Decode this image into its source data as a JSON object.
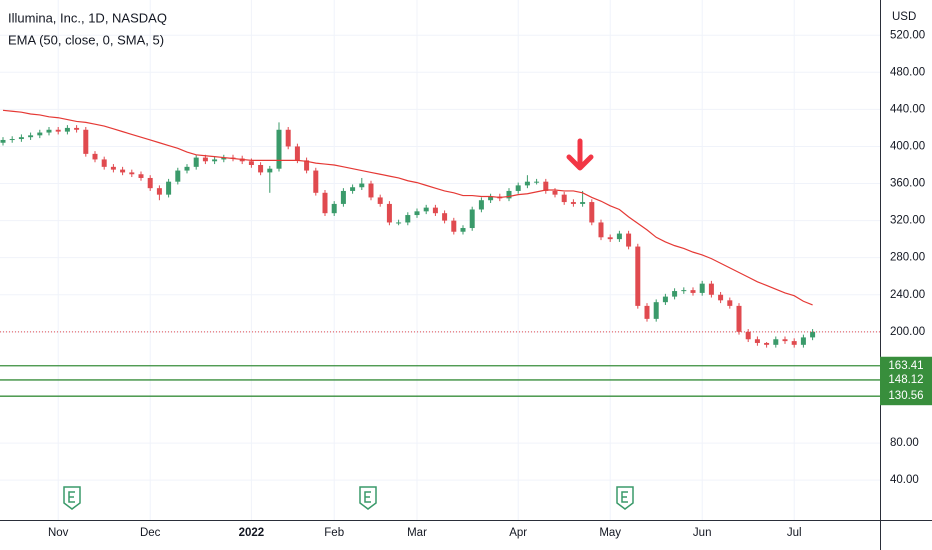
{
  "chart_data": {
    "type": "candlestick",
    "title": "Illumina, Inc., 1D, NASDAQ",
    "currency": "USD",
    "categories": [
      null,
      null,
      null,
      null,
      null,
      null,
      "Nov",
      null,
      null,
      null,
      null,
      null,
      null,
      null,
      null,
      null,
      "Dec",
      null,
      null,
      null,
      null,
      null,
      null,
      null,
      null,
      null,
      null,
      "2022",
      null,
      null,
      null,
      null,
      null,
      null,
      null,
      null,
      "Feb",
      null,
      null,
      null,
      null,
      null,
      null,
      null,
      null,
      "Mar",
      null,
      null,
      null,
      null,
      null,
      null,
      null,
      null,
      null,
      null,
      "Apr",
      null,
      null,
      null,
      null,
      null,
      null,
      null,
      null,
      null,
      "May",
      null,
      null,
      null,
      null,
      null,
      null,
      null,
      null,
      null,
      "Jun",
      null,
      null,
      null,
      null,
      null,
      null,
      null,
      null,
      null,
      "Jul",
      null,
      null
    ],
    "open": [
      404,
      407,
      408,
      410,
      412,
      415,
      418,
      416,
      420,
      418,
      392,
      386,
      378,
      375,
      372,
      370,
      366,
      355,
      348,
      362,
      374,
      378,
      388,
      384,
      386,
      388,
      387,
      384,
      380,
      372,
      376,
      418,
      400,
      385,
      374,
      350,
      328,
      338,
      352,
      356,
      360,
      345,
      338,
      318,
      318,
      326,
      330,
      334,
      328,
      320,
      308,
      312,
      332,
      342,
      346,
      344,
      352,
      358,
      362,
      362,
      352,
      348,
      340,
      338,
      340,
      318,
      302,
      300,
      306,
      292,
      228,
      214,
      232,
      238,
      244,
      245,
      242,
      252,
      240,
      234,
      228,
      200,
      192,
      188,
      186,
      192,
      190,
      186,
      194
    ],
    "high": [
      410,
      411,
      413,
      415,
      418,
      421,
      421,
      423,
      423,
      421,
      395,
      389,
      381,
      378,
      375,
      373,
      369,
      358,
      365,
      377,
      381,
      391,
      391,
      389,
      391,
      391,
      390,
      387,
      383,
      379,
      426,
      421,
      403,
      388,
      377,
      353,
      341,
      355,
      359,
      366,
      363,
      348,
      341,
      321,
      329,
      333,
      337,
      337,
      331,
      323,
      315,
      335,
      345,
      349,
      349,
      355,
      361,
      369,
      365,
      365,
      355,
      351,
      343,
      352,
      343,
      321,
      305,
      309,
      309,
      295,
      231,
      235,
      241,
      247,
      248,
      248,
      255,
      255,
      243,
      237,
      231,
      203,
      195,
      189,
      195,
      195,
      193,
      197,
      203
    ],
    "low": [
      401,
      404,
      405,
      407,
      409,
      412,
      413,
      413,
      415,
      389,
      383,
      375,
      372,
      369,
      367,
      363,
      352,
      342,
      345,
      359,
      371,
      375,
      381,
      381,
      383,
      384,
      381,
      377,
      369,
      350,
      373,
      397,
      382,
      371,
      347,
      325,
      325,
      335,
      349,
      353,
      342,
      335,
      315,
      315,
      315,
      323,
      327,
      325,
      317,
      305,
      305,
      309,
      329,
      339,
      341,
      341,
      349,
      355,
      359,
      349,
      345,
      337,
      335,
      335,
      315,
      299,
      297,
      297,
      289,
      225,
      211,
      211,
      229,
      235,
      241,
      239,
      239,
      237,
      231,
      225,
      197,
      189,
      185,
      183,
      183,
      187,
      183,
      183,
      191
    ],
    "close": [
      407,
      408,
      410,
      412,
      415,
      418,
      416,
      420,
      418,
      392,
      386,
      378,
      375,
      372,
      370,
      366,
      355,
      348,
      362,
      374,
      378,
      388,
      384,
      386,
      388,
      387,
      384,
      380,
      372,
      376,
      418,
      400,
      385,
      374,
      350,
      328,
      338,
      352,
      356,
      360,
      345,
      338,
      318,
      318,
      326,
      330,
      334,
      328,
      320,
      308,
      312,
      332,
      342,
      346,
      344,
      352,
      358,
      362,
      362,
      352,
      348,
      340,
      338,
      340,
      318,
      302,
      300,
      306,
      292,
      228,
      214,
      232,
      238,
      244,
      245,
      242,
      252,
      240,
      234,
      228,
      200,
      192,
      188,
      186,
      192,
      190,
      186,
      194,
      200
    ],
    "up_color": "#3a9a6a",
    "down_color": "#e04a4f",
    "indicator": {
      "name": "EMA (50, close, 0, SMA, 5)",
      "color": "#e53935",
      "values": [
        439,
        438,
        437,
        435,
        434,
        432,
        431,
        429,
        427,
        426,
        424,
        422,
        419,
        416,
        413,
        410,
        407,
        404,
        401,
        398,
        394,
        391,
        390,
        389,
        388,
        387,
        386,
        385,
        385,
        385,
        385,
        385,
        385,
        384,
        382,
        381,
        380,
        378,
        376,
        374,
        372,
        370,
        368,
        366,
        363,
        361,
        358,
        355,
        352,
        350,
        347,
        347,
        346,
        346,
        345,
        346,
        348,
        349,
        351,
        353,
        353,
        352,
        352,
        350,
        345,
        341,
        336,
        332,
        324,
        317,
        310,
        302,
        297,
        293,
        290,
        286,
        283,
        279,
        274,
        269,
        264,
        259,
        254,
        250,
        246,
        242,
        239,
        233,
        229
      ]
    },
    "levels": [
      163.41,
      148.12,
      130.56
    ],
    "level_color": "#388e3c",
    "ylim": [
      -3,
      558
    ],
    "yticks": [
      {
        "value": 40,
        "label": "40.00"
      },
      {
        "value": 80,
        "label": "80.00"
      },
      {
        "value": 200,
        "label": "200.00"
      },
      {
        "value": 240,
        "label": "240.00"
      },
      {
        "value": 280,
        "label": "280.00"
      },
      {
        "value": 320,
        "label": "320.00"
      },
      {
        "value": 360,
        "label": "360.00"
      },
      {
        "value": 400,
        "label": "400.00"
      },
      {
        "value": 440,
        "label": "440.00"
      },
      {
        "value": 480,
        "label": "480.00"
      },
      {
        "value": 520,
        "label": "520.00"
      }
    ],
    "grid": true
  }
}
